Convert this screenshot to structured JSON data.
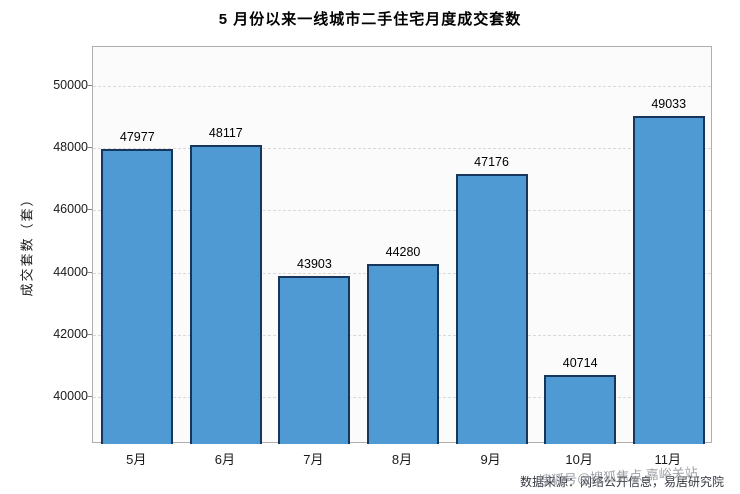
{
  "title": "5 月份以来一线城市二手住宅月度成交套数",
  "chart_data": {
    "type": "bar",
    "categories": [
      "5月",
      "6月",
      "7月",
      "8月",
      "9月",
      "10月",
      "11月"
    ],
    "values": [
      47977,
      48117,
      43903,
      44280,
      47176,
      40714,
      49033
    ],
    "title": "5 月份以来一线城市二手住宅月度成交套数",
    "xlabel": "",
    "ylabel": "成交套数（套）",
    "ylim": [
      38500,
      51250
    ],
    "yticks": [
      40000,
      42000,
      44000,
      46000,
      48000,
      50000
    ],
    "grid": "horizontal-dashed",
    "legend": "none",
    "bar_fill": "#4f9ad2",
    "bar_edge": "#16365c"
  },
  "footer": {
    "source": "数据来源：网络公开信息，易居研究院",
    "watermark": "搜狐号@搜狐焦点 嘉峪关站"
  },
  "colors": {
    "background": "#ffffff",
    "plot_background": "#fbfbfb",
    "gridline": "#d9d9d9",
    "bar_fill": "#4f9ad2",
    "bar_edge": "#16365c",
    "text": "#000000",
    "watermark": "#8c9096"
  }
}
